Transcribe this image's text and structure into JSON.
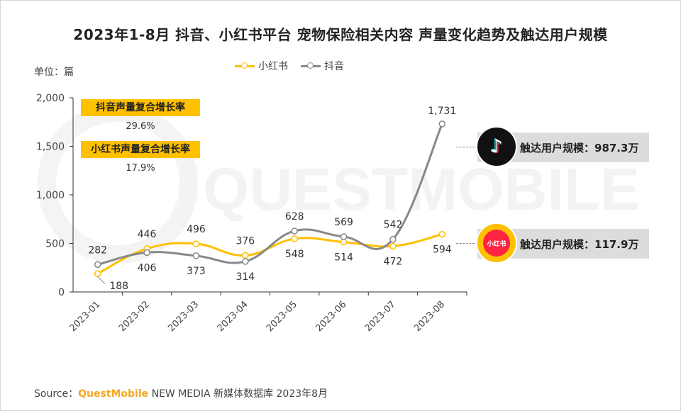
{
  "title": "2023年1-8月 抖音、小红书平台 宠物保险相关内容 声量变化趋势及触达用户规模",
  "unit": "单位：篇",
  "source": {
    "label": "Source：",
    "brand": "QuestMobile",
    "rest": " NEW MEDIA 新媒体数据库 2023年8月"
  },
  "watermark": "QUESTMOBILE",
  "cagr": [
    {
      "label": "抖音声量复合增长率",
      "value": "29.6%"
    },
    {
      "label": "小红书声量复合增长率",
      "value": "17.9%"
    }
  ],
  "reach": [
    {
      "platform_icon": "douyin-logo-icon",
      "text": "触达用户规模：987.3万"
    },
    {
      "platform_icon": "xiaohongshu-logo-icon",
      "logo_text": "小红书",
      "text": "触达用户规模：117.9万"
    }
  ],
  "chart_data": {
    "type": "line",
    "categories": [
      "2023-01",
      "2023-02",
      "2023-03",
      "2023-04",
      "2023-05",
      "2023-06",
      "2023-07",
      "2023-08"
    ],
    "series": [
      {
        "name": "小红书",
        "color": "#ffc000",
        "values": [
          188,
          446,
          496,
          376,
          548,
          514,
          472,
          594
        ]
      },
      {
        "name": "抖音",
        "color": "#888888",
        "values": [
          282,
          406,
          373,
          314,
          628,
          569,
          542,
          1731
        ]
      }
    ],
    "ylim": [
      0,
      2000
    ],
    "yticks": [
      0,
      500,
      1000,
      1500,
      2000
    ],
    "ytick_labels": [
      "0",
      "500",
      "1,000",
      "1,500",
      "2,000"
    ],
    "legend": "top-center",
    "grid": false,
    "smooth": true
  }
}
